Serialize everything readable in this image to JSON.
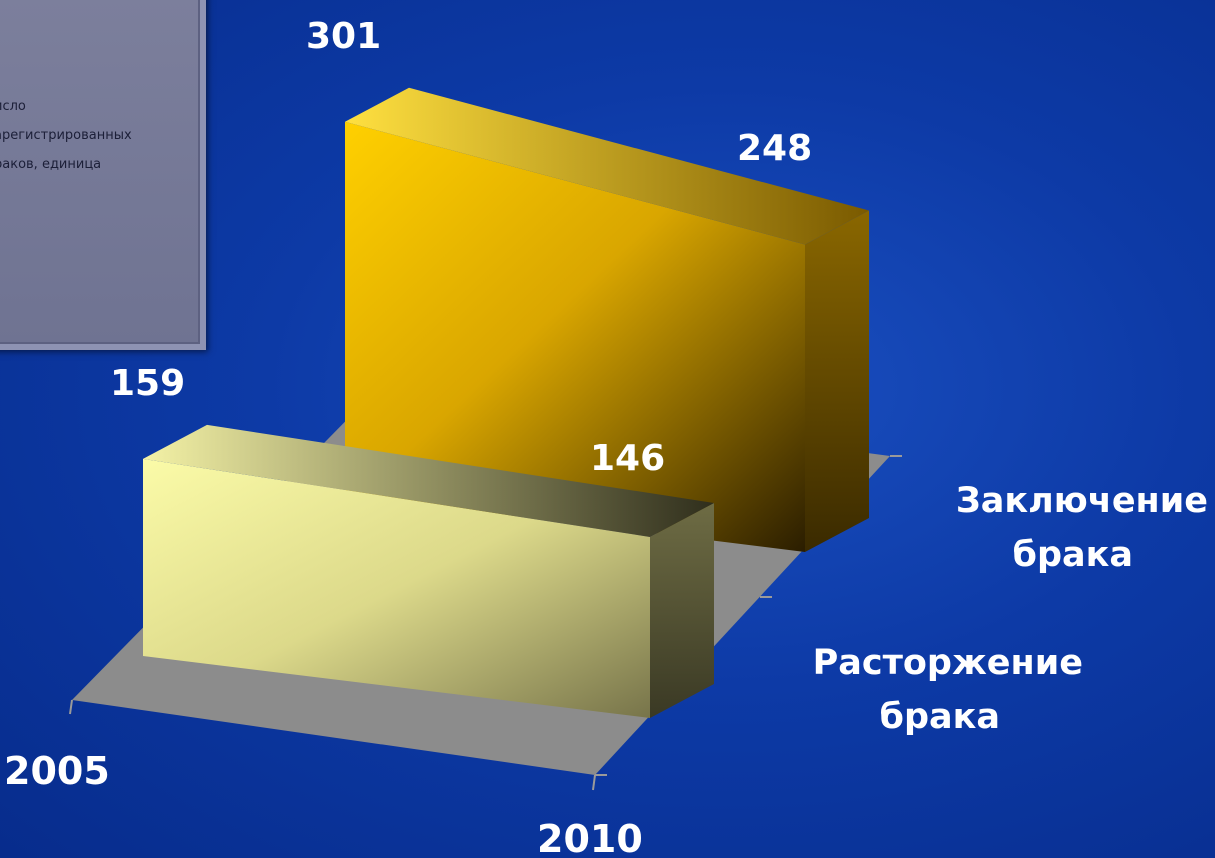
{
  "legend_text": "исло\nарегистрированных\nраков, единица",
  "chart_data": {
    "type": "bar",
    "categories": [
      "2005",
      "2010"
    ],
    "series": [
      {
        "name": "Заключение брака",
        "values": [
          301,
          248
        ],
        "color": "#f5c400"
      },
      {
        "name": "Расторжение брака",
        "values": [
          159,
          146
        ],
        "color": "#f4f29a"
      }
    ],
    "category_labels": [
      "2005",
      "2010"
    ],
    "series_labels": [
      [
        "Заключение",
        "брака"
      ],
      [
        "Расторжение",
        "брака"
      ]
    ]
  }
}
